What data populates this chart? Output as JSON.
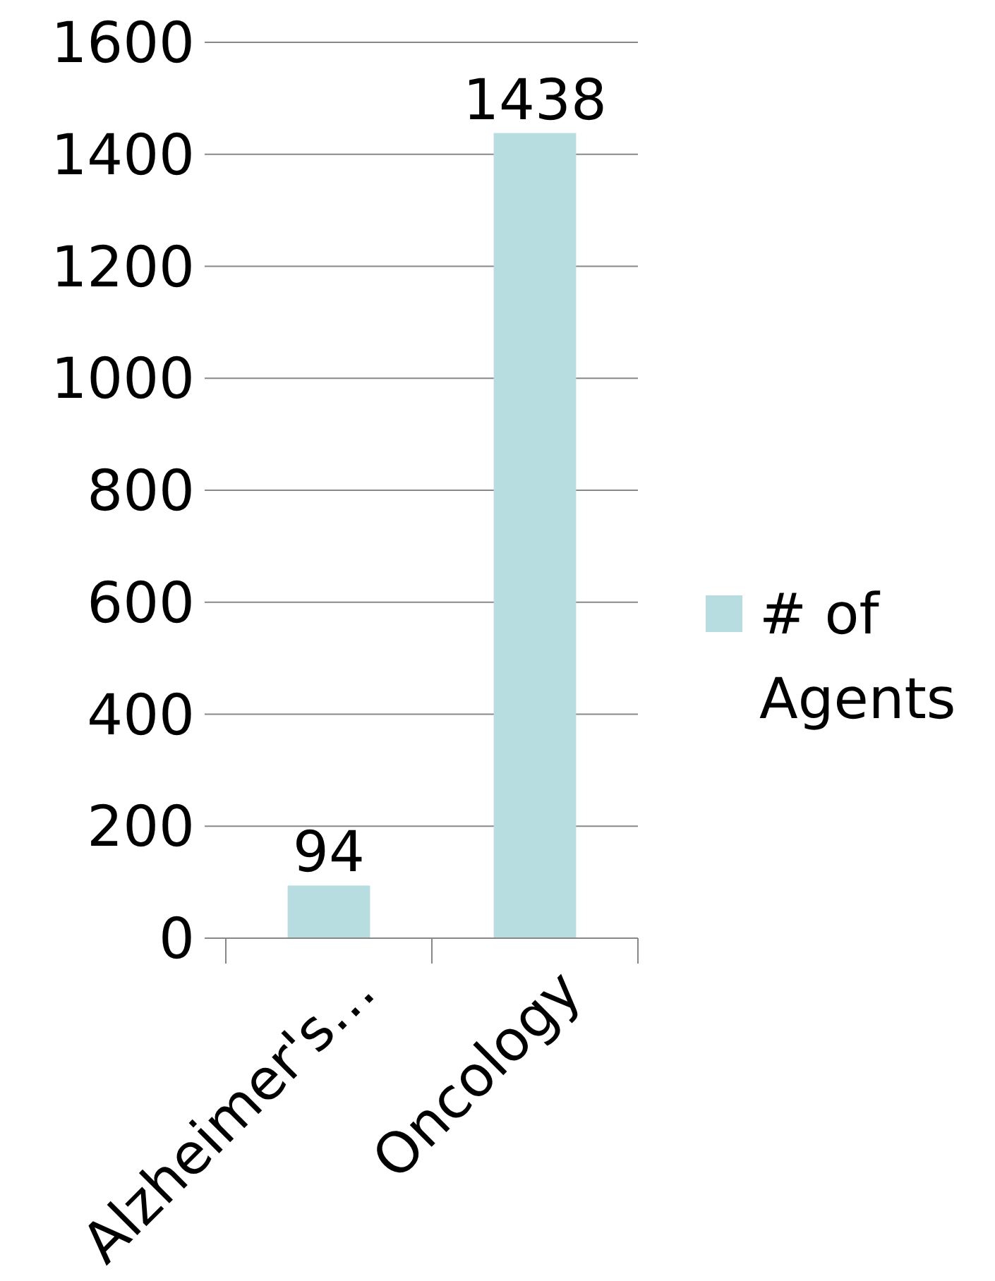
{
  "chart_data": {
    "type": "bar",
    "categories": [
      "Alzheimer's…",
      "Oncology"
    ],
    "series": [
      {
        "name": "# of Agents",
        "color": "#b7dde1",
        "values": [
          94,
          1438
        ]
      }
    ],
    "data_labels": true,
    "ylim": [
      0,
      1600
    ],
    "yticks": [
      0,
      200,
      400,
      600,
      800,
      1000,
      1200,
      1400,
      1600
    ],
    "grid": "y",
    "legend": "right"
  }
}
